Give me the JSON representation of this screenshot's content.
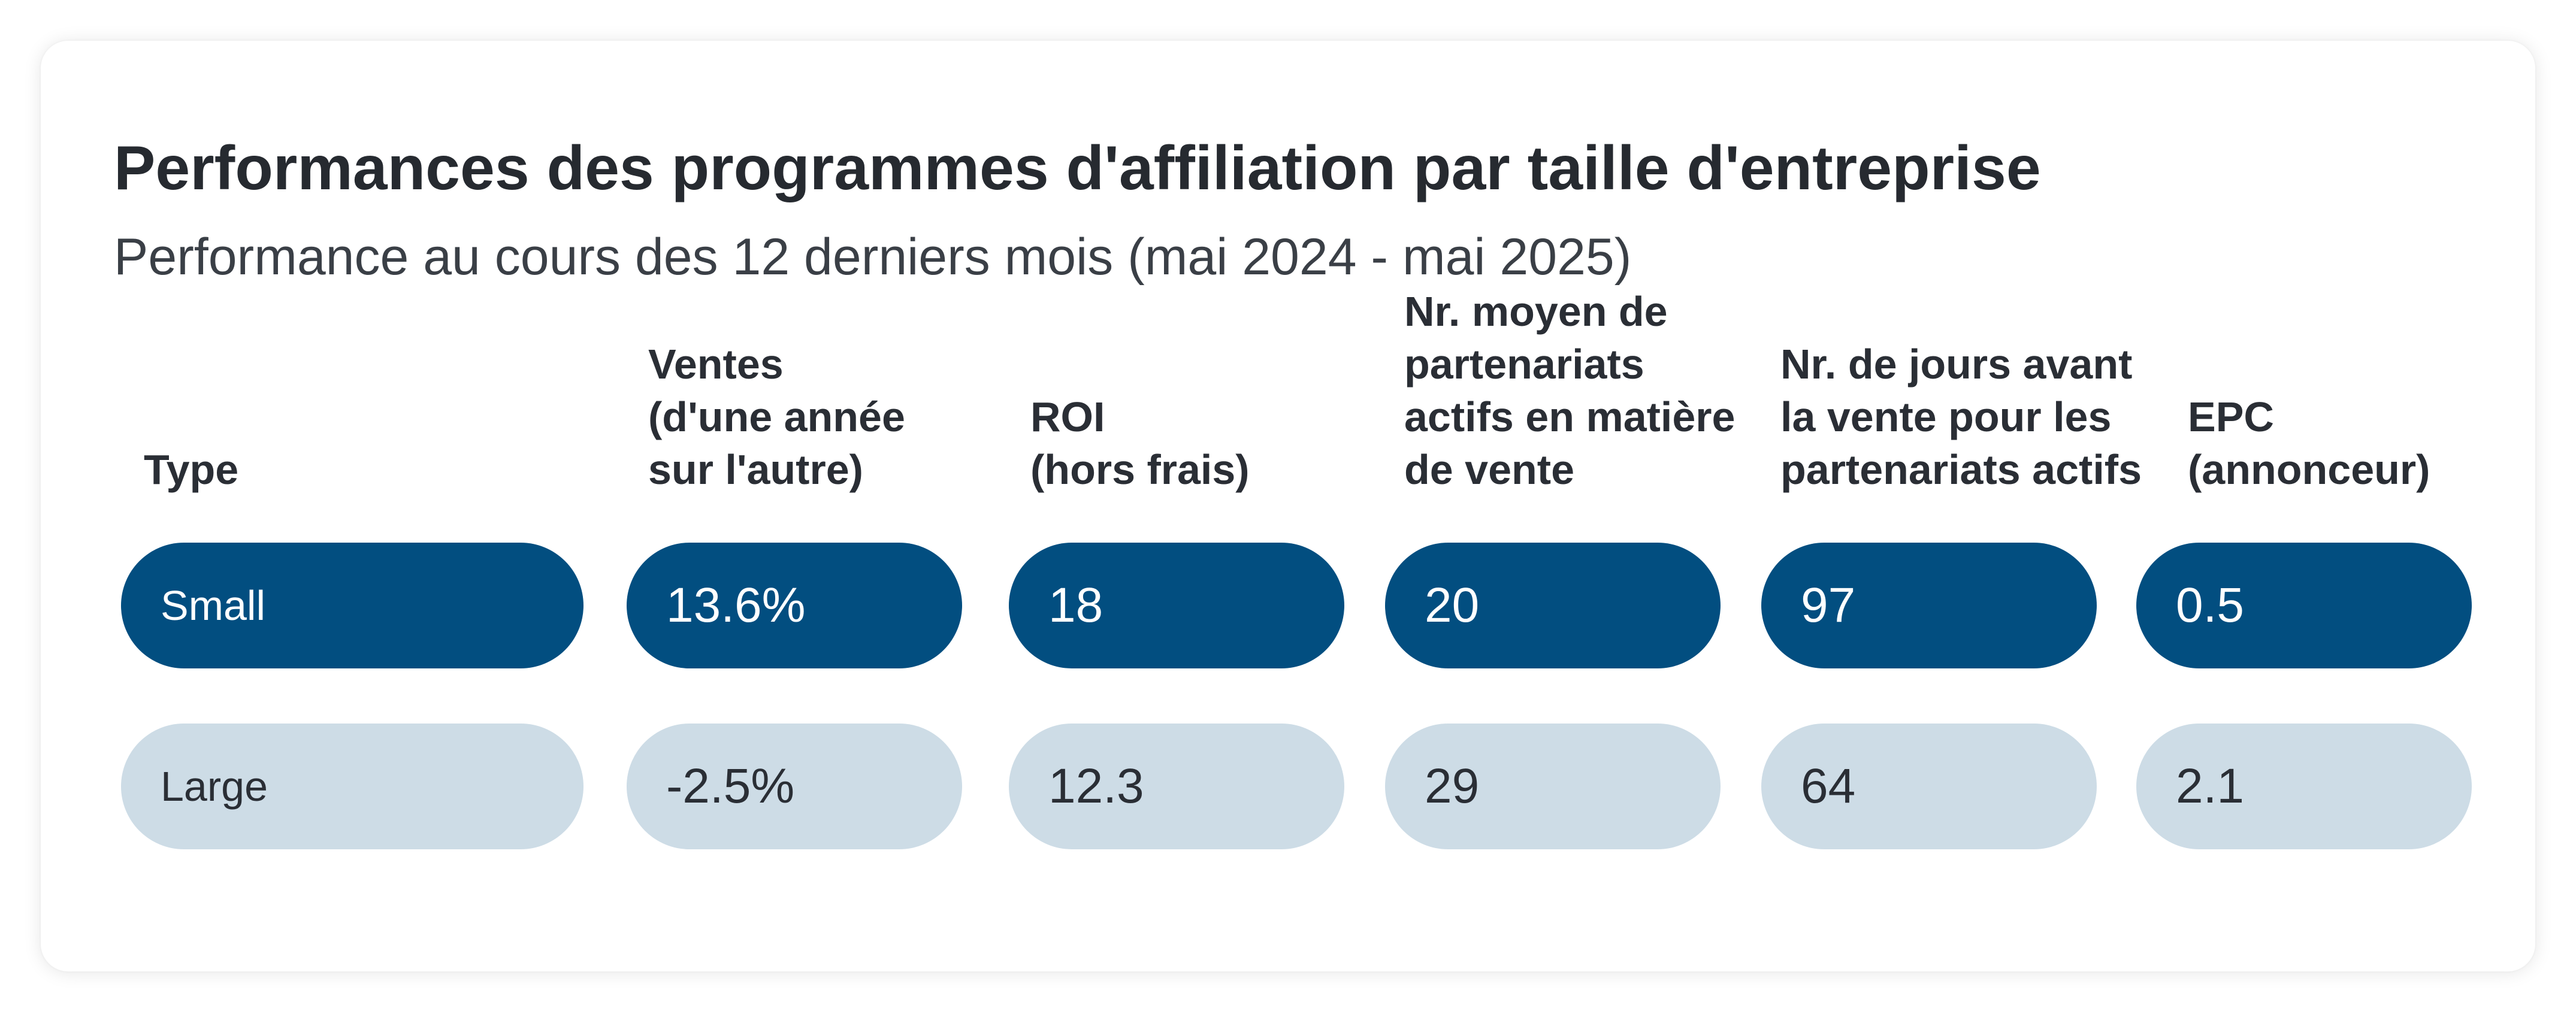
{
  "chart_data": {
    "type": "table",
    "title": "Performances des programmes d'affiliation par taille d'entreprise",
    "subtitle": "Performance au cours des 12 derniers mois (mai 2024 - mai 2025)",
    "columns": [
      {
        "lines": [
          "Type"
        ]
      },
      {
        "lines": [
          "Ventes",
          "(d'une année",
          "sur l'autre)"
        ]
      },
      {
        "lines": [
          "ROI",
          "(hors frais)"
        ]
      },
      {
        "lines": [
          "Nr. moyen de",
          "partenariats",
          "actifs en matière",
          "de vente"
        ]
      },
      {
        "lines": [
          "Nr. de jours avant",
          "la vente pour les",
          "partenariats actifs"
        ]
      },
      {
        "lines": [
          "EPC",
          "(annonceur)"
        ]
      }
    ],
    "rows": [
      {
        "type": "Small",
        "values": [
          "13.6%",
          "18",
          "20",
          "97",
          "0.5"
        ]
      },
      {
        "type": "Large",
        "values": [
          "-2.5%",
          "12.3",
          "29",
          "64",
          "2.1"
        ]
      }
    ],
    "colors": {
      "small_row": "#024e80",
      "large_row": "#cddce6",
      "small_text": "#ffffff",
      "large_text": "#2a2e35"
    }
  }
}
